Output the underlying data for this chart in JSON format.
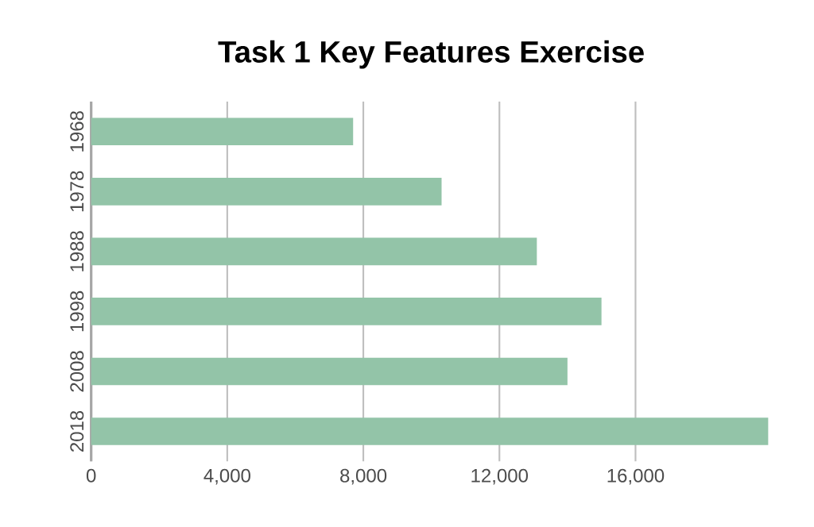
{
  "chart_data": {
    "type": "bar",
    "orientation": "horizontal",
    "title": "Task 1 Key Features Exercise",
    "categories": [
      "1968",
      "1978",
      "1988",
      "1998",
      "2008",
      "2018"
    ],
    "values": [
      7700,
      10300,
      13100,
      15000,
      14000,
      19900
    ],
    "color": "#93c4a8",
    "xlim": [
      0,
      20000
    ],
    "xticks": [
      0,
      {
        "value": 4000,
        "label": "4,000"
      },
      {
        "value": 8000,
        "label": "8,000"
      },
      {
        "value": 12000,
        "label": "12,000"
      },
      {
        "value": 16000,
        "label": "16,000"
      }
    ],
    "grid": "x"
  }
}
